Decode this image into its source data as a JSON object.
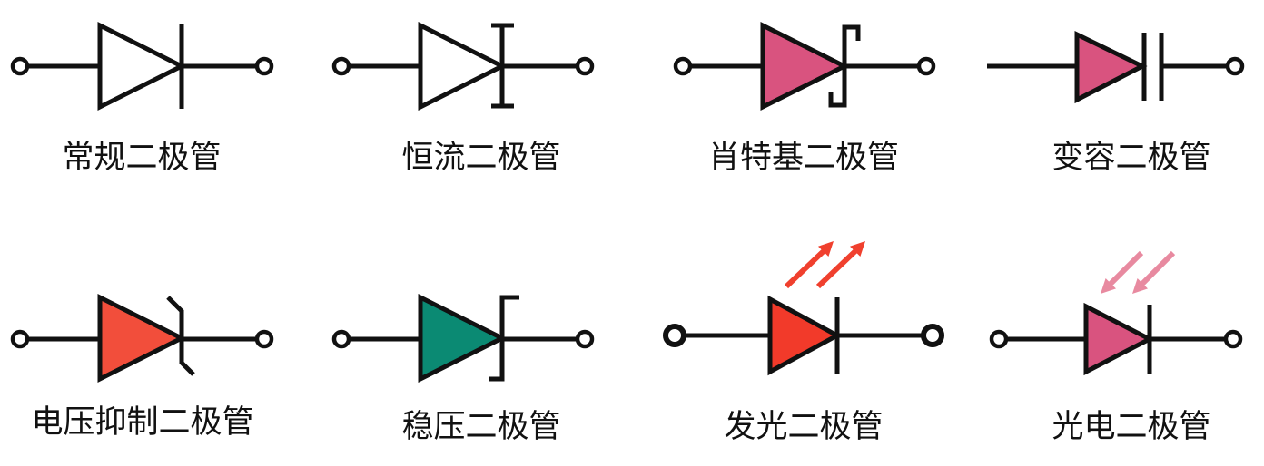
{
  "colors": {
    "stroke": "#111111",
    "background": "#ffffff",
    "led_arrow": "#f0402e",
    "photo_arrow": "#e88aa0"
  },
  "symbols": [
    {
      "label": "常规二极管",
      "icon": "regular-diode-icon",
      "fill": "#ffffff"
    },
    {
      "label": "恒流二极管",
      "icon": "constant-current-diode-icon",
      "fill": "#ffffff"
    },
    {
      "label": "肖特基二极管",
      "icon": "schottky-diode-icon",
      "fill": "#d9537f"
    },
    {
      "label": "变容二极管",
      "icon": "varactor-diode-icon",
      "fill": "#d9537f"
    },
    {
      "label": "电压抑制二极管",
      "icon": "tvs-diode-icon",
      "fill": "#f24e3b"
    },
    {
      "label": "稳压二极管",
      "icon": "zener-diode-icon",
      "fill": "#0b8a73"
    },
    {
      "label": "发光二极管",
      "icon": "led-icon",
      "fill": "#f23a2a"
    },
    {
      "label": "光电二极管",
      "icon": "photodiode-icon",
      "fill": "#d9537f"
    }
  ]
}
